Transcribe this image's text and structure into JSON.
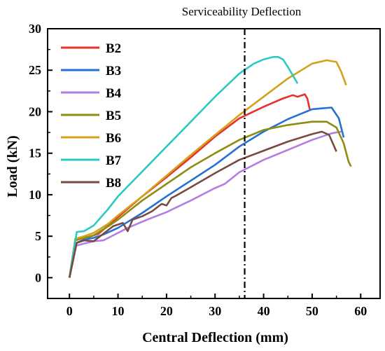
{
  "chart_data": {
    "type": "line",
    "title": "",
    "xlabel": "Central Deflection (mm)",
    "ylabel": "Load (kN)",
    "xlim": [
      -4.5,
      64
    ],
    "ylim": [
      -2.5,
      30
    ],
    "xticks": [
      "0",
      "10",
      "20",
      "30",
      "40",
      "50",
      "60"
    ],
    "yticks": [
      "0",
      "5",
      "10",
      "15",
      "20",
      "25",
      "30"
    ],
    "grid": false,
    "legend_position": "top-left",
    "annotations": [
      {
        "text": "Serviceability Deflection",
        "x": 36.1,
        "line": "dash-dot vertical"
      }
    ],
    "series": [
      {
        "name": "B2",
        "color": "#e8302e",
        "x": [
          0,
          1.2,
          2,
          4,
          6,
          8,
          10,
          15,
          20,
          25,
          30,
          35,
          40,
          44,
          46,
          47,
          48.5,
          49,
          49.5
        ],
        "y": [
          0,
          4.5,
          4.8,
          4.9,
          5.3,
          6.3,
          7.3,
          9.8,
          12.1,
          14.5,
          17,
          19.2,
          20.6,
          21.6,
          22,
          21.8,
          22.1,
          21.6,
          20.3
        ]
      },
      {
        "name": "B3",
        "color": "#2470d4",
        "x": [
          0,
          1.5,
          3,
          5,
          7,
          10,
          15,
          20,
          25,
          30,
          35,
          40,
          45,
          50,
          52,
          54,
          55.5,
          56.5
        ],
        "y": [
          0,
          4.2,
          4.6,
          4.8,
          5.2,
          6,
          7.8,
          9.8,
          11.7,
          13.6,
          15.8,
          17.6,
          19.1,
          20.3,
          20.4,
          20.5,
          19.2,
          16.9
        ]
      },
      {
        "name": "B4",
        "color": "#b27ee0",
        "x": [
          0,
          1,
          3,
          5,
          7,
          9,
          12,
          16,
          20,
          25,
          30,
          32,
          35,
          40,
          45,
          50,
          54,
          56
        ],
        "y": [
          0,
          3.8,
          4.1,
          4.4,
          4.5,
          5.1,
          6,
          7,
          7.9,
          9.3,
          10.8,
          11.3,
          12.7,
          14.2,
          15.4,
          16.6,
          17.4,
          17.6
        ]
      },
      {
        "name": "B5",
        "color": "#8d8d12",
        "x": [
          0,
          1.2,
          3,
          5,
          8,
          10,
          15,
          20,
          25,
          30,
          35,
          40,
          45,
          50,
          53,
          55,
          56.5,
          57.5,
          58
        ],
        "y": [
          0,
          4.5,
          4.8,
          5.1,
          6.2,
          7,
          9.3,
          11.3,
          13.3,
          15,
          16.6,
          17.8,
          18.4,
          18.8,
          18.8,
          18.1,
          16.2,
          14,
          13.4
        ]
      },
      {
        "name": "B6",
        "color": "#d4a21a",
        "x": [
          0,
          1.2,
          3,
          5,
          8,
          10,
          15,
          20,
          25,
          30,
          35,
          40,
          45,
          50,
          53,
          55,
          56,
          57
        ],
        "y": [
          0,
          4.7,
          5,
          5.4,
          6.5,
          7.5,
          9.8,
          12.3,
          14.8,
          17.2,
          19.6,
          21.8,
          24,
          25.8,
          26.2,
          26,
          24.8,
          23.2
        ]
      },
      {
        "name": "B7",
        "color": "#2ec8c4",
        "x": [
          0,
          1.5,
          3,
          5,
          8,
          10,
          15,
          20,
          25,
          30,
          35,
          38,
          40,
          42,
          43,
          44,
          45,
          46,
          47
        ],
        "y": [
          0,
          5.5,
          5.6,
          6.3,
          8.3,
          9.8,
          12.8,
          15.8,
          18.8,
          21.8,
          24.6,
          25.8,
          26.3,
          26.6,
          26.6,
          26.3,
          25.4,
          24.4,
          23.4
        ]
      },
      {
        "name": "B8",
        "color": "#7a4a40",
        "x": [
          0,
          1.5,
          3,
          5,
          7,
          9,
          11,
          12,
          13,
          15,
          17,
          19,
          20,
          21,
          22,
          25,
          30,
          35,
          40,
          45,
          50,
          52,
          53.5,
          55
        ],
        "y": [
          0,
          4.2,
          4.5,
          4.4,
          5.3,
          6.2,
          6.6,
          5.6,
          7,
          7.4,
          8,
          8.9,
          8.7,
          9.6,
          9.9,
          10.9,
          12.6,
          14.2,
          15.3,
          16.4,
          17.3,
          17.6,
          17.2,
          15.2
        ]
      }
    ]
  }
}
